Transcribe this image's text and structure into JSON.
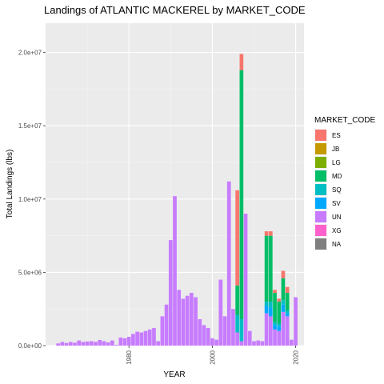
{
  "chart_data": {
    "type": "bar",
    "stacked": true,
    "title": "Landings of ATLANTIC MACKEREL by MARKET_CODE",
    "xlabel": "YEAR",
    "ylabel": "Total Landings (lbs)",
    "xlim": [
      1960,
      2022
    ],
    "ylim": [
      0,
      22000000
    ],
    "xticks": [
      1980,
      2000,
      2020
    ],
    "xtick_labels": [
      "1980",
      "2000",
      "2020"
    ],
    "yticks": [
      0,
      5000000,
      10000000,
      15000000,
      20000000
    ],
    "ytick_labels": [
      "0.0e+00",
      "5.0e+06",
      "1.0e+07",
      "1.5e+07",
      "2.0e+07"
    ],
    "grid": true,
    "legend": {
      "title": "MARKET_CODE",
      "position": "right",
      "entries": [
        {
          "name": "ES",
          "color": "#F8766D"
        },
        {
          "name": "JB",
          "color": "#C49A00"
        },
        {
          "name": "LG",
          "color": "#7CAE00"
        },
        {
          "name": "MD",
          "color": "#00BE67"
        },
        {
          "name": "SQ",
          "color": "#00BFC4"
        },
        {
          "name": "SV",
          "color": "#00A9FF"
        },
        {
          "name": "UN",
          "color": "#C77CFF"
        },
        {
          "name": "XG",
          "color": "#FF61CC"
        },
        {
          "name": "NA",
          "color": "#7F7F7F"
        }
      ]
    },
    "x": [
      1963,
      1964,
      1965,
      1966,
      1967,
      1968,
      1969,
      1970,
      1971,
      1972,
      1973,
      1974,
      1975,
      1976,
      1977,
      1978,
      1979,
      1980,
      1981,
      1982,
      1983,
      1984,
      1985,
      1986,
      1987,
      1988,
      1989,
      1990,
      1991,
      1992,
      1993,
      1994,
      1995,
      1996,
      1997,
      1998,
      1999,
      2000,
      2001,
      2002,
      2003,
      2004,
      2005,
      2006,
      2007,
      2008,
      2009,
      2010,
      2011,
      2012,
      2013,
      2014,
      2015,
      2016,
      2017,
      2018,
      2019,
      2020
    ],
    "series": [
      {
        "name": "UN",
        "values": [
          150000,
          250000,
          180000,
          250000,
          200000,
          350000,
          250000,
          280000,
          300000,
          250000,
          380000,
          300000,
          220000,
          350000,
          50000,
          550000,
          500000,
          600000,
          800000,
          950000,
          900000,
          1000000,
          1100000,
          1200000,
          300000,
          2000000,
          2800000,
          7200000,
          10200000,
          3800000,
          3200000,
          3400000,
          3600000,
          3300000,
          1800000,
          1400000,
          1200000,
          500000,
          400000,
          4500000,
          2000000,
          11200000,
          2500000,
          900000,
          300000,
          9000000,
          1000000,
          300000,
          350000,
          300000,
          2200000,
          2000000,
          1100000,
          1000000,
          2300000,
          2000000,
          400000,
          3300000
        ]
      },
      {
        "name": "SV",
        "values": [
          0,
          0,
          0,
          0,
          0,
          0,
          0,
          0,
          0,
          0,
          0,
          0,
          0,
          0,
          0,
          0,
          0,
          0,
          0,
          0,
          0,
          0,
          0,
          0,
          0,
          0,
          0,
          0,
          0,
          0,
          0,
          0,
          0,
          0,
          0,
          0,
          0,
          0,
          0,
          0,
          0,
          0,
          0,
          0,
          0,
          0,
          0,
          0,
          0,
          0,
          500000,
          600000,
          300000,
          300000,
          500000,
          200000,
          0,
          0
        ]
      },
      {
        "name": "SQ",
        "values": [
          0,
          0,
          0,
          0,
          0,
          0,
          0,
          0,
          0,
          0,
          0,
          0,
          0,
          0,
          0,
          0,
          0,
          0,
          0,
          0,
          0,
          0,
          0,
          0,
          0,
          0,
          0,
          0,
          0,
          0,
          0,
          0,
          0,
          0,
          0,
          0,
          0,
          0,
          0,
          0,
          0,
          0,
          0,
          1200000,
          1500000,
          0,
          0,
          0,
          0,
          0,
          300000,
          400000,
          200000,
          200000,
          300000,
          200000,
          0,
          0
        ]
      },
      {
        "name": "MD",
        "values": [
          0,
          0,
          0,
          0,
          0,
          0,
          0,
          0,
          0,
          0,
          0,
          0,
          0,
          0,
          0,
          0,
          0,
          0,
          0,
          0,
          0,
          0,
          0,
          0,
          0,
          0,
          0,
          0,
          0,
          0,
          0,
          0,
          0,
          0,
          0,
          0,
          0,
          0,
          0,
          0,
          0,
          0,
          0,
          2000000,
          17000000,
          0,
          0,
          0,
          0,
          0,
          4500000,
          4500000,
          2000000,
          1500000,
          1500000,
          1200000,
          0,
          0
        ]
      },
      {
        "name": "ES",
        "values": [
          0,
          0,
          0,
          0,
          0,
          0,
          0,
          0,
          0,
          0,
          0,
          0,
          0,
          0,
          0,
          0,
          0,
          0,
          0,
          0,
          0,
          0,
          0,
          0,
          0,
          0,
          0,
          0,
          0,
          0,
          0,
          0,
          0,
          0,
          0,
          0,
          0,
          0,
          0,
          0,
          0,
          0,
          0,
          6500000,
          1100000,
          0,
          0,
          0,
          0,
          0,
          300000,
          300000,
          200000,
          200000,
          500000,
          400000,
          0,
          0
        ]
      },
      {
        "name": "LG",
        "values": [
          0,
          0,
          0,
          0,
          0,
          0,
          0,
          0,
          0,
          0,
          0,
          0,
          0,
          0,
          0,
          0,
          0,
          0,
          0,
          0,
          0,
          0,
          0,
          0,
          0,
          0,
          0,
          0,
          0,
          0,
          0,
          0,
          0,
          0,
          0,
          0,
          0,
          0,
          0,
          0,
          0,
          0,
          0,
          0,
          0,
          0,
          0,
          0,
          0,
          0,
          0,
          0,
          0,
          0,
          0,
          0,
          0,
          0
        ]
      }
    ]
  }
}
